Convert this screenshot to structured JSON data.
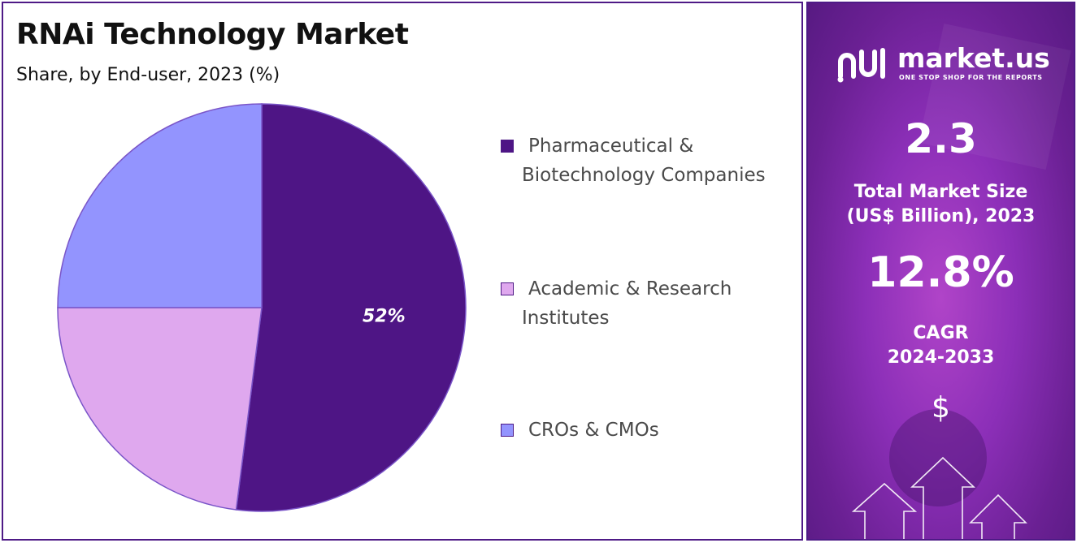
{
  "chart_data": {
    "type": "pie",
    "title": "RNAi Technology Market",
    "subtitle": "Share, by End-user, 2023 (%)",
    "slices": [
      {
        "name": "Pharmaceutical & Biotechnology Companies",
        "value": 52,
        "label": "52%",
        "color": "#4e1585"
      },
      {
        "name": "Academic & Research Institutes",
        "value": 23,
        "label": "",
        "color": "#dfa8ee"
      },
      {
        "name": "CROs & CMOs",
        "value": 25,
        "label": "",
        "color": "#9394fe"
      }
    ],
    "legend_position": "right",
    "legend": [
      {
        "line1": "Pharmaceutical &",
        "line2": "Biotechnology Companies",
        "color": "#4e1585"
      },
      {
        "line1": "Academic & Research",
        "line2": "Institutes",
        "color": "#dfa8ee"
      },
      {
        "line1": "CROs & CMOs",
        "line2": "",
        "color": "#9394fe"
      }
    ]
  },
  "brand": {
    "name": "market.us",
    "tagline": "ONE STOP SHOP FOR THE REPORTS"
  },
  "stats": {
    "market_size_value": "2.3",
    "market_size_label_1": "Total Market Size",
    "market_size_label_2": "(US$ Billion), 2023",
    "cagr_value": "12.8%",
    "cagr_label_1": "CAGR",
    "cagr_label_2": "2024-2033",
    "currency_symbol": "$"
  },
  "colors": {
    "accent": "#4e1a86",
    "panel_gradient": "#8c2fb8"
  }
}
